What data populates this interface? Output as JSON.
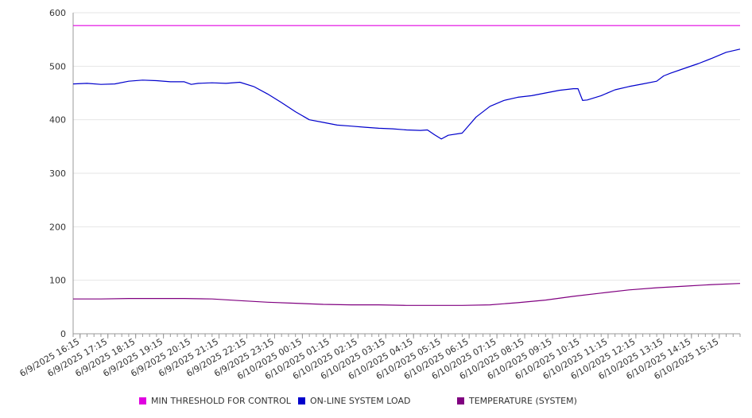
{
  "chart_data": {
    "type": "line",
    "title": "",
    "xlabel": "",
    "ylabel": "",
    "ylim": [
      0,
      600
    ],
    "yticks": [
      "0",
      "100",
      "200",
      "300",
      "400",
      "500",
      "600"
    ],
    "x_range": [
      "6/9/2025 16:00",
      "6/10/2025 16:00"
    ],
    "x_tick_labels": [
      "6/9/2025 16:15",
      "6/9/2025 17:15",
      "6/9/2025 18:15",
      "6/9/2025 19:15",
      "6/9/2025 20:15",
      "6/9/2025 21:15",
      "6/9/2025 22:15",
      "6/9/2025 23:15",
      "6/10/2025 00:15",
      "6/10/2025 01:15",
      "6/10/2025 02:15",
      "6/10/2025 03:15",
      "6/10/2025 04:15",
      "6/10/2025 05:15",
      "6/10/2025 06:15",
      "6/10/2025 07:15",
      "6/10/2025 08:15",
      "6/10/2025 09:15",
      "6/10/2025 10:15",
      "6/10/2025 11:15",
      "6/10/2025 12:15",
      "6/10/2025 13:15",
      "6/10/2025 14:15",
      "6/10/2025 15:15"
    ],
    "grid": true,
    "legend_position": "bottom",
    "series": [
      {
        "name": "MIN THRESHOLD FOR CONTROL",
        "color": "#e000e0",
        "x": [
          "6/9/2025 16:00",
          "6/10/2025 16:00"
        ],
        "values": [
          576,
          576
        ]
      },
      {
        "name": "ON-LINE SYSTEM LOAD",
        "color": "#0000cc",
        "x": [
          "6/9/2025 16:00",
          "6/9/2025 16:30",
          "6/9/2025 17:00",
          "6/9/2025 17:30",
          "6/9/2025 18:00",
          "6/9/2025 18:30",
          "6/9/2025 19:00",
          "6/9/2025 19:30",
          "6/9/2025 20:00",
          "6/9/2025 20:15",
          "6/9/2025 20:30",
          "6/9/2025 21:00",
          "6/9/2025 21:30",
          "6/9/2025 22:00",
          "6/9/2025 22:30",
          "6/9/2025 23:00",
          "6/9/2025 23:30",
          "6/10/2025 00:00",
          "6/10/2025 00:30",
          "6/10/2025 01:00",
          "6/10/2025 01:30",
          "6/10/2025 02:00",
          "6/10/2025 02:30",
          "6/10/2025 03:00",
          "6/10/2025 03:30",
          "6/10/2025 04:00",
          "6/10/2025 04:30",
          "6/10/2025 04:45",
          "6/10/2025 05:00",
          "6/10/2025 05:15",
          "6/10/2025 05:30",
          "6/10/2025 06:00",
          "6/10/2025 06:15",
          "6/10/2025 06:30",
          "6/10/2025 07:00",
          "6/10/2025 07:30",
          "6/10/2025 08:00",
          "6/10/2025 08:30",
          "6/10/2025 09:00",
          "6/10/2025 09:30",
          "6/10/2025 10:00",
          "6/10/2025 10:10",
          "6/10/2025 10:20",
          "6/10/2025 10:30",
          "6/10/2025 11:00",
          "6/10/2025 11:30",
          "6/10/2025 12:00",
          "6/10/2025 12:30",
          "6/10/2025 13:00",
          "6/10/2025 13:15",
          "6/10/2025 13:30",
          "6/10/2025 14:00",
          "6/10/2025 14:30",
          "6/10/2025 15:00",
          "6/10/2025 15:30",
          "6/10/2025 16:00"
        ],
        "values": [
          467,
          468,
          466,
          467,
          472,
          474,
          473,
          471,
          471,
          466,
          468,
          469,
          468,
          470,
          462,
          448,
          432,
          415,
          400,
          395,
          390,
          388,
          386,
          384,
          383,
          381,
          380,
          381,
          372,
          364,
          371,
          375,
          390,
          405,
          425,
          436,
          442,
          445,
          450,
          455,
          458,
          458,
          436,
          437,
          445,
          456,
          462,
          467,
          472,
          482,
          487,
          496,
          505,
          515,
          526,
          532
        ]
      },
      {
        "name": "TEMPERATURE (SYSTEM)",
        "color": "#800080",
        "x": [
          "6/9/2025 16:00",
          "6/9/2025 17:00",
          "6/9/2025 18:00",
          "6/9/2025 19:00",
          "6/9/2025 20:00",
          "6/9/2025 21:00",
          "6/9/2025 22:00",
          "6/9/2025 23:00",
          "6/10/2025 00:00",
          "6/10/2025 01:00",
          "6/10/2025 02:00",
          "6/10/2025 03:00",
          "6/10/2025 04:00",
          "6/10/2025 05:00",
          "6/10/2025 06:00",
          "6/10/2025 07:00",
          "6/10/2025 08:00",
          "6/10/2025 09:00",
          "6/10/2025 10:00",
          "6/10/2025 11:00",
          "6/10/2025 12:00",
          "6/10/2025 13:00",
          "6/10/2025 14:00",
          "6/10/2025 15:00",
          "6/10/2025 16:00"
        ],
        "values": [
          65,
          65,
          66,
          66,
          66,
          65,
          62,
          59,
          57,
          55,
          54,
          54,
          53,
          53,
          53,
          54,
          58,
          63,
          70,
          76,
          82,
          86,
          89,
          92,
          94
        ]
      }
    ]
  }
}
